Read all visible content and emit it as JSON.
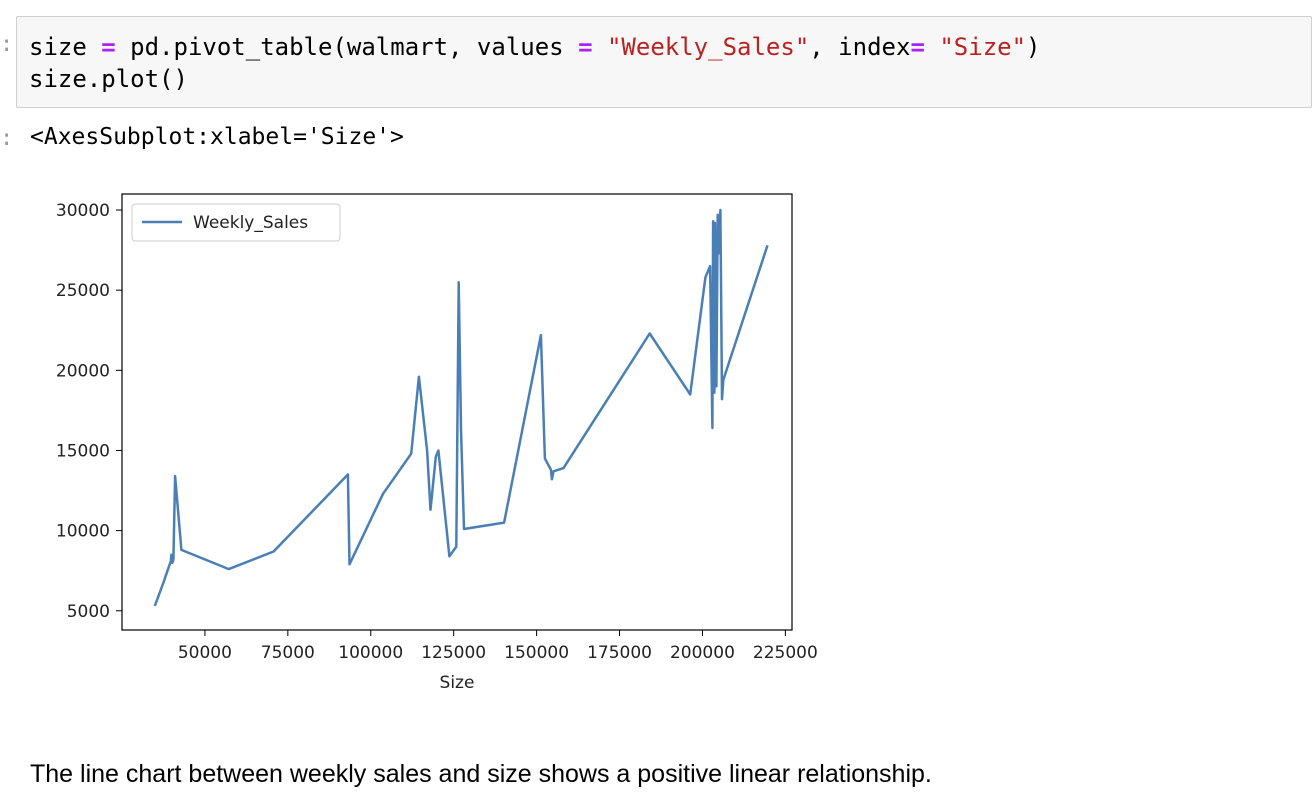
{
  "code_cell": {
    "line1": {
      "t1": "size ",
      "op1": "=",
      "t2": " pd.pivot_table(walmart, values ",
      "op2": "=",
      "t3": " ",
      "s1": "\"Weekly_Sales\"",
      "t4": ", index",
      "op3": "=",
      "t5": " ",
      "s2": "\"Size\"",
      "t6": ")"
    },
    "line2": "size.plot()"
  },
  "output": {
    "repr": "<AxesSubplot:xlabel='Size'>"
  },
  "chart_data": {
    "type": "line",
    "xlabel": "Size",
    "ylabel": "",
    "title": "",
    "xlim": [
      25000,
      227000
    ],
    "ylim": [
      3800,
      31000
    ],
    "xticks": [
      50000,
      75000,
      100000,
      125000,
      150000,
      175000,
      200000,
      225000
    ],
    "yticks": [
      5000,
      10000,
      15000,
      20000,
      25000,
      30000
    ],
    "legend": "upper-left",
    "grid": false,
    "series": [
      {
        "name": "Weekly_Sales",
        "color": "#4a7fb5",
        "x": [
          34900,
          37400,
          39700,
          39900,
          40200,
          40500,
          41000,
          42900,
          57200,
          70700,
          93100,
          93600,
          103700,
          112200,
          114500,
          117000,
          118000,
          119600,
          120400,
          123700,
          125800,
          126500,
          127200,
          128100,
          140200,
          151300,
          152500,
          154300,
          154600,
          155100,
          158100,
          184100,
          196300,
          200900,
          202300,
          203000,
          203200,
          203600,
          203800,
          204200,
          204600,
          204900,
          205400,
          205900,
          206300,
          219600
        ],
        "y": [
          5300,
          6700,
          8100,
          8500,
          8000,
          8200,
          13400,
          8800,
          7600,
          8700,
          13500,
          7900,
          12300,
          14800,
          19600,
          15000,
          11300,
          14600,
          15000,
          8400,
          9000,
          25500,
          16300,
          10100,
          10500,
          22200,
          14500,
          13800,
          13200,
          13700,
          13900,
          22300,
          18500,
          25800,
          26500,
          16400,
          29300,
          18600,
          29200,
          19000,
          29700,
          27300,
          30000,
          18200,
          19400,
          27800
        ]
      }
    ]
  },
  "markdown": {
    "text": "The line chart between weekly sales and size shows a positive linear relationship."
  }
}
